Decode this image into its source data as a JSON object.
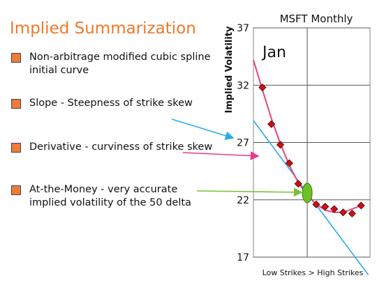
{
  "heading": "Implied Summarization",
  "bullets": [
    {
      "text": "Non-arbitrage modified cubic spline initial curve"
    },
    {
      "text": "Slope - Steepness of strike skew"
    },
    {
      "text": "Derivative - curviness of strike skew"
    },
    {
      "text": "At-the-Money - very accurate implied volatility of the 50 delta"
    }
  ],
  "colors": {
    "heading": "#f0782a",
    "bullet_square": "#f07a3a",
    "curve": "#e8447a",
    "marker": "#cc1111",
    "tangent": "#2aa8e8",
    "atm_ellipse": "#6cc02a",
    "arrow_slope": "#2aaee8",
    "arrow_derivative": "#e83a8a",
    "arrow_atm": "#7cc03a"
  },
  "chart_data": {
    "type": "scatter",
    "title": "MSFT Monthly",
    "month_label": "Jan",
    "ylabel": "Implied Volatility",
    "xlabel": "Low Strikes > High Strikes",
    "ylim": [
      17,
      37
    ],
    "yticks": [
      "37",
      "32",
      "27",
      "22",
      "17"
    ],
    "grid": true,
    "x": [
      1,
      2,
      3,
      4,
      5,
      6,
      7,
      8,
      9,
      10,
      11,
      12
    ],
    "values": [
      31.8,
      28.6,
      26.8,
      25.2,
      23.4,
      22.2,
      21.6,
      21.4,
      21.2,
      20.9,
      20.8,
      21.5
    ],
    "curve_points": [
      [
        0,
        34.2
      ],
      [
        1,
        31.6
      ],
      [
        2,
        29.1
      ],
      [
        3,
        26.9
      ],
      [
        4,
        25.0
      ],
      [
        5,
        23.5
      ],
      [
        6,
        22.4
      ],
      [
        7,
        21.6
      ],
      [
        8,
        21.1
      ],
      [
        9,
        20.9
      ],
      [
        10,
        20.9
      ],
      [
        11,
        21.2
      ],
      [
        12,
        21.5
      ]
    ],
    "atm_x": 6
  }
}
